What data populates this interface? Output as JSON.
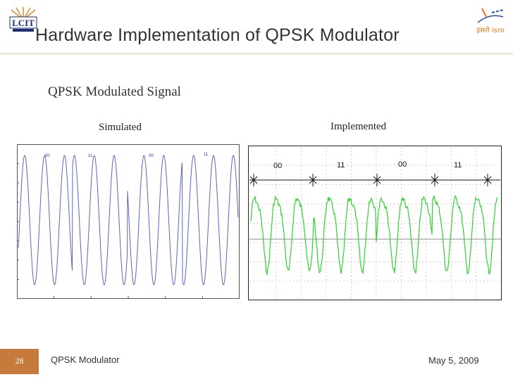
{
  "slide": {
    "title": "Hardware Implementation of QPSK Modulator",
    "subtitle": "QPSK Modulated Signal",
    "simulated_label": "Simulated",
    "implemented_label": "Implemented",
    "slide_number": "28",
    "footer_text": "QPSK Modulator",
    "footer_date": "May 5, 2009",
    "logo_left_text": "LCIT",
    "logo_right_text": "इसरो isro"
  },
  "simulated_plot": {
    "symbol_labels": [
      "00",
      "11",
      "00",
      "11"
    ],
    "line_color": "#5a67b8"
  },
  "implemented_plot": {
    "symbol_labels": [
      "00",
      "11",
      "00",
      "11"
    ],
    "line_color": "#2fd22f"
  },
  "colors": {
    "accent": "#c67a3c",
    "title_text": "#333333"
  }
}
